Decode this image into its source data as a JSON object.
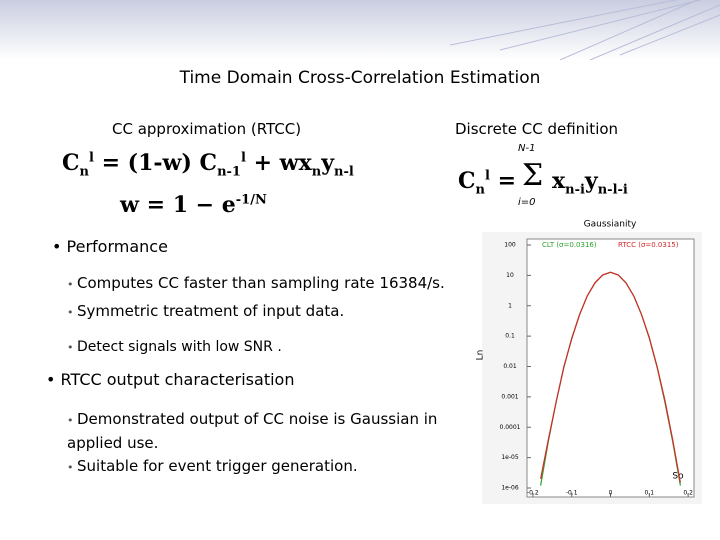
{
  "header": {
    "title": "Time Domain Cross-Correlation Estimation"
  },
  "left_heading": "CC approximation (RTCC)",
  "right_heading": "Discrete CC definition",
  "formula_rtcc": [
    "C",
    "n",
    "l",
    "= (1-w) C",
    "n-1",
    "l",
    "+ wx",
    "n",
    "y",
    "n-l"
  ],
  "formula_w": [
    "w = 1 − e",
    "-1/N"
  ],
  "formula_cc": [
    "C",
    "n",
    "l",
    "=",
    "Σ",
    "N-1",
    "i=0",
    "x",
    "n-i",
    "y",
    "n-l-i"
  ],
  "bullets": [
    {
      "text": "Performance",
      "items": [
        "Computes CC faster than sampling rate 16384/s.",
        "Symmetric treatment of input data.",
        "Detect signals with low SNR ."
      ]
    },
    {
      "text": "RTCC output characterisation",
      "items": [
        "Demonstrated output of CC noise is Gaussian in applied use.",
        "Suitable for event trigger generation."
      ]
    }
  ],
  "chart_data": {
    "type": "line",
    "title": "Gaussianity",
    "xlabel": "So",
    "ylabel": "Ln",
    "log_y": true,
    "x": [
      -0.18,
      -0.16,
      -0.14,
      -0.12,
      -0.1,
      -0.08,
      -0.06,
      -0.04,
      -0.02,
      0,
      0.02,
      0.04,
      0.06,
      0.08,
      0.1,
      0.12,
      0.14,
      0.16,
      0.18
    ],
    "series": [
      {
        "name": "CLT (σ=0.0316)",
        "color": "#2ca02c",
        "values": [
          1.2e-06,
          3.5e-05,
          0.00069,
          0.0094,
          0.085,
          0.51,
          2.08,
          5.66,
          10.3,
          12.6,
          10.3,
          5.66,
          2.08,
          0.51,
          0.085,
          0.0094,
          0.00069,
          3.5e-05,
          1.2e-06
        ]
      },
      {
        "name": "RTCC (σ=0.0315)",
        "color": "#d62728",
        "values": [
          2e-06,
          4e-05,
          0.0007,
          0.01,
          0.08,
          0.5,
          2.1,
          5.7,
          10.4,
          12.7,
          10.3,
          5.6,
          2.1,
          0.52,
          0.09,
          0.01,
          0.0008,
          4e-05,
          1.5e-06
        ]
      }
    ],
    "xlim": [
      -0.21,
      0.21
    ],
    "xticks": [
      -0.2,
      -0.1,
      0,
      0.1,
      0.2
    ],
    "ylim": [
      1e-06,
      100
    ],
    "yticks": [
      100,
      10,
      1,
      0.1,
      0.01,
      0.001,
      0.0001,
      {
        "value": 1e-05,
        "label": "1e-05"
      },
      {
        "value": 1e-06,
        "label": "1e-06"
      }
    ]
  }
}
